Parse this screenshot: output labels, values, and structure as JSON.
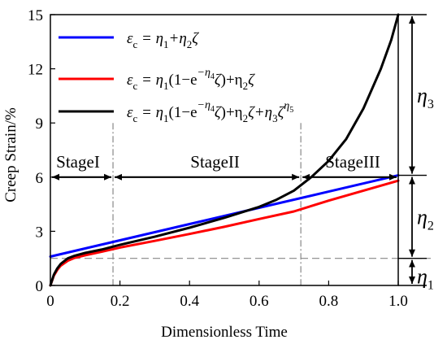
{
  "chart_data": {
    "type": "line",
    "xlabel": "Dimensionless Time",
    "ylabel": "Creep Strain/%",
    "xlim": [
      0,
      1.0
    ],
    "ylim": [
      0,
      15
    ],
    "x_ticks": [
      0,
      0.2,
      0.4,
      0.6,
      0.8,
      1.0
    ],
    "x_tick_labels": [
      "0",
      "0.2",
      "0.4",
      "0.6",
      "0.8",
      "1.0"
    ],
    "y_ticks": [
      0,
      3,
      6,
      9,
      12,
      15
    ],
    "y_tick_labels": [
      "0",
      "3",
      "6",
      "9",
      "12",
      "15"
    ],
    "grid": false,
    "legend_position": "top-left",
    "series": [
      {
        "name": "εc = η1+η2ζ",
        "color": "#0000ff",
        "x": [
          0,
          0.2,
          0.4,
          0.6,
          0.8,
          1.0
        ],
        "y": [
          1.6,
          2.5,
          3.4,
          4.3,
          5.2,
          6.1
        ]
      },
      {
        "name": "εc = η1(1−e−η4ζ)+η2ζ",
        "color": "#ff0000",
        "x": [
          0,
          0.01,
          0.02,
          0.03,
          0.05,
          0.07,
          0.1,
          0.15,
          0.2,
          0.3,
          0.4,
          0.5,
          0.6,
          0.7,
          0.8,
          0.9,
          1.0
        ],
        "y": [
          0,
          0.55,
          0.87,
          1.1,
          1.37,
          1.53,
          1.67,
          1.88,
          2.1,
          2.47,
          2.85,
          3.25,
          3.68,
          4.1,
          4.7,
          5.25,
          5.8
        ]
      },
      {
        "name": "εc = η1(1−e−η4ζ)+η2ζ+η3ζη5",
        "color": "#000000",
        "x": [
          0,
          0.01,
          0.02,
          0.03,
          0.05,
          0.07,
          0.1,
          0.15,
          0.2,
          0.3,
          0.4,
          0.5,
          0.6,
          0.65,
          0.7,
          0.75,
          0.8,
          0.85,
          0.9,
          0.95,
          0.98,
          1.0
        ],
        "y": [
          0,
          0.6,
          0.95,
          1.2,
          1.5,
          1.65,
          1.8,
          2.0,
          2.25,
          2.7,
          3.2,
          3.75,
          4.35,
          4.75,
          5.25,
          6.0,
          6.9,
          8.1,
          9.8,
          12.0,
          13.6,
          15.0
        ]
      }
    ],
    "stage_boundaries": [
      0.18,
      0.72
    ],
    "stage_arrow_level": 6.0,
    "stages": [
      {
        "label": "StageI",
        "x_from": 0,
        "x_to": 0.18
      },
      {
        "label": "StageII",
        "x_from": 0.18,
        "x_to": 0.72
      },
      {
        "label": "StageIII",
        "x_from": 0.72,
        "x_to": 1.0
      }
    ],
    "reference_lines": [
      {
        "y": 1.5
      }
    ],
    "eta_brackets": [
      {
        "label": "η",
        "sub": "3",
        "from": 6.1,
        "to": 15
      },
      {
        "label": "η",
        "sub": "2",
        "from": 1.5,
        "to": 6.1
      },
      {
        "label": "η",
        "sub": "1",
        "from": 0,
        "to": 1.5
      }
    ]
  }
}
